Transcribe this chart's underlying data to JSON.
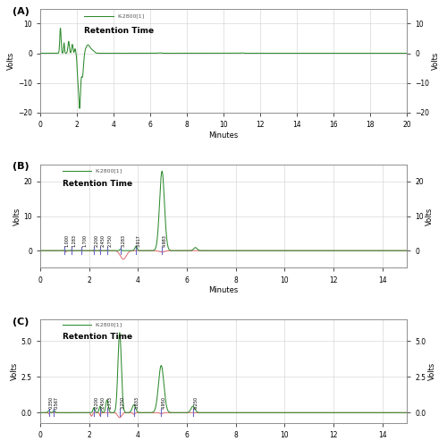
{
  "panel_A": {
    "label": "(A)",
    "legend": "K-2800[1]",
    "legend2": "Retention Time",
    "xlim": [
      0,
      20
    ],
    "ylim": [
      -20,
      15
    ],
    "yticks": [
      -20,
      -10,
      0,
      10
    ],
    "xticks": [
      0,
      2,
      4,
      6,
      8,
      10,
      12,
      14,
      16,
      18,
      20
    ],
    "xlabel": "Minutes",
    "ylabel": "Volts"
  },
  "panel_B": {
    "label": "(B)",
    "legend": "K-2800[1]",
    "legend2": "Retention Time",
    "xlim": [
      0,
      15
    ],
    "ylim": [
      -5,
      25
    ],
    "yticks": [
      0,
      10,
      20
    ],
    "xticks": [
      0,
      2,
      4,
      6,
      8,
      10,
      12,
      14
    ],
    "xlabel": "Minutes",
    "ylabel": "Volts",
    "peak_labels": [
      "1.000",
      "1.283",
      "1.700",
      "2.200",
      "2.450",
      "2.750",
      "3.283",
      "3.917",
      "4.983"
    ],
    "peak_times": [
      1.0,
      1.283,
      1.7,
      2.2,
      2.45,
      2.75,
      3.283,
      3.917,
      4.983
    ]
  },
  "panel_C": {
    "label": "(C)",
    "legend": "K-2800[1]",
    "legend2": "Retention Time",
    "xlim": [
      0,
      15
    ],
    "ylim": [
      -0.75,
      6.5
    ],
    "yticks": [
      0.0,
      2.5,
      5.0
    ],
    "xticks": [
      0,
      2,
      4,
      6,
      8,
      10,
      12,
      14
    ],
    "xlabel": "Minutes",
    "ylabel": "Volts",
    "peak_labels": [
      "0.350",
      "0.567",
      "2.200",
      "2.450",
      "2.733",
      "3.250",
      "3.833",
      "4.950",
      "6.250"
    ],
    "peak_times": [
      0.35,
      0.567,
      2.2,
      2.45,
      2.733,
      3.25,
      3.833,
      4.95,
      6.25
    ]
  },
  "green": "#2e8b2e",
  "red": "#e06060",
  "blue": "#6666cc",
  "grid_color": "#d0d0d0",
  "bg_color": "#ffffff"
}
